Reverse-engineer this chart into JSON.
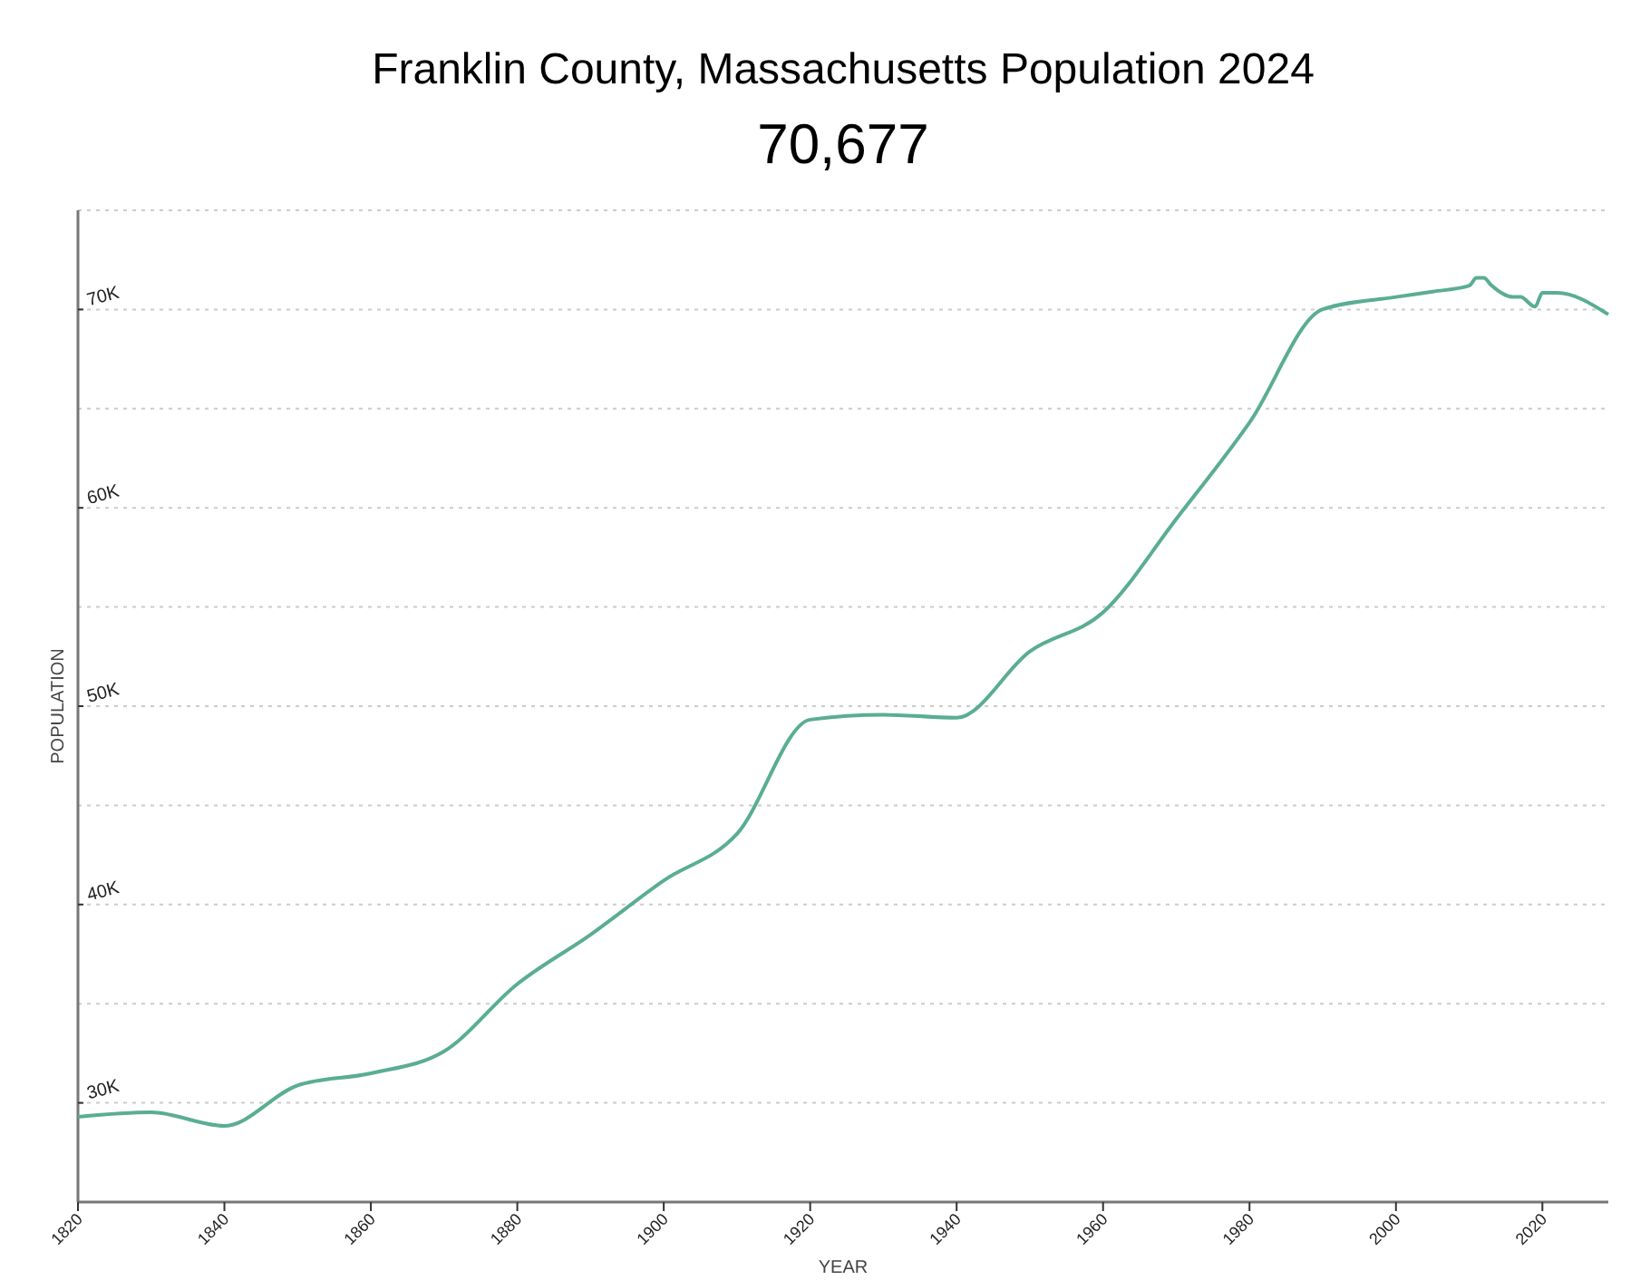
{
  "chart_data": {
    "type": "line",
    "title": "Franklin County, Massachusetts Population 2024",
    "subtitle": "70,677",
    "xlabel": "YEAR",
    "ylabel": "POPULATION",
    "x": [
      1820,
      1830,
      1840,
      1850,
      1860,
      1870,
      1880,
      1890,
      1900,
      1910,
      1920,
      1930,
      1940,
      1950,
      1960,
      1970,
      1980,
      1990,
      2000,
      2005,
      2010,
      2011,
      2012,
      2013,
      2016,
      2017,
      2019,
      2020,
      2022,
      2029
    ],
    "series": [
      {
        "color": "#5aad94",
        "values": [
          29300,
          29520,
          28840,
          30880,
          31490,
          32600,
          35990,
          38480,
          41210,
          43560,
          49320,
          49570,
          49420,
          52760,
          54730,
          59440,
          64300,
          70010,
          70630,
          70900,
          71200,
          71590,
          71600,
          71230,
          70630,
          70630,
          70140,
          70840,
          70840,
          69750
        ]
      }
    ],
    "xlim": [
      1820,
      2029
    ],
    "xticks": [
      1820,
      1840,
      1860,
      1880,
      1900,
      1920,
      1940,
      1960,
      1980,
      2000,
      2020
    ],
    "ylim": [
      25000,
      75000
    ],
    "yticks": [
      {
        "value": 30000,
        "label": "30K"
      },
      {
        "value": 35000,
        "label": null
      },
      {
        "value": 40000,
        "label": "40K"
      },
      {
        "value": 45000,
        "label": null
      },
      {
        "value": 50000,
        "label": "50K"
      },
      {
        "value": 55000,
        "label": null
      },
      {
        "value": 60000,
        "label": "60K"
      },
      {
        "value": 65000,
        "label": null
      },
      {
        "value": 70000,
        "label": "70K"
      },
      {
        "value": 75000,
        "label": null
      }
    ],
    "grid": "y",
    "marker": "none",
    "line_style": "solid"
  }
}
